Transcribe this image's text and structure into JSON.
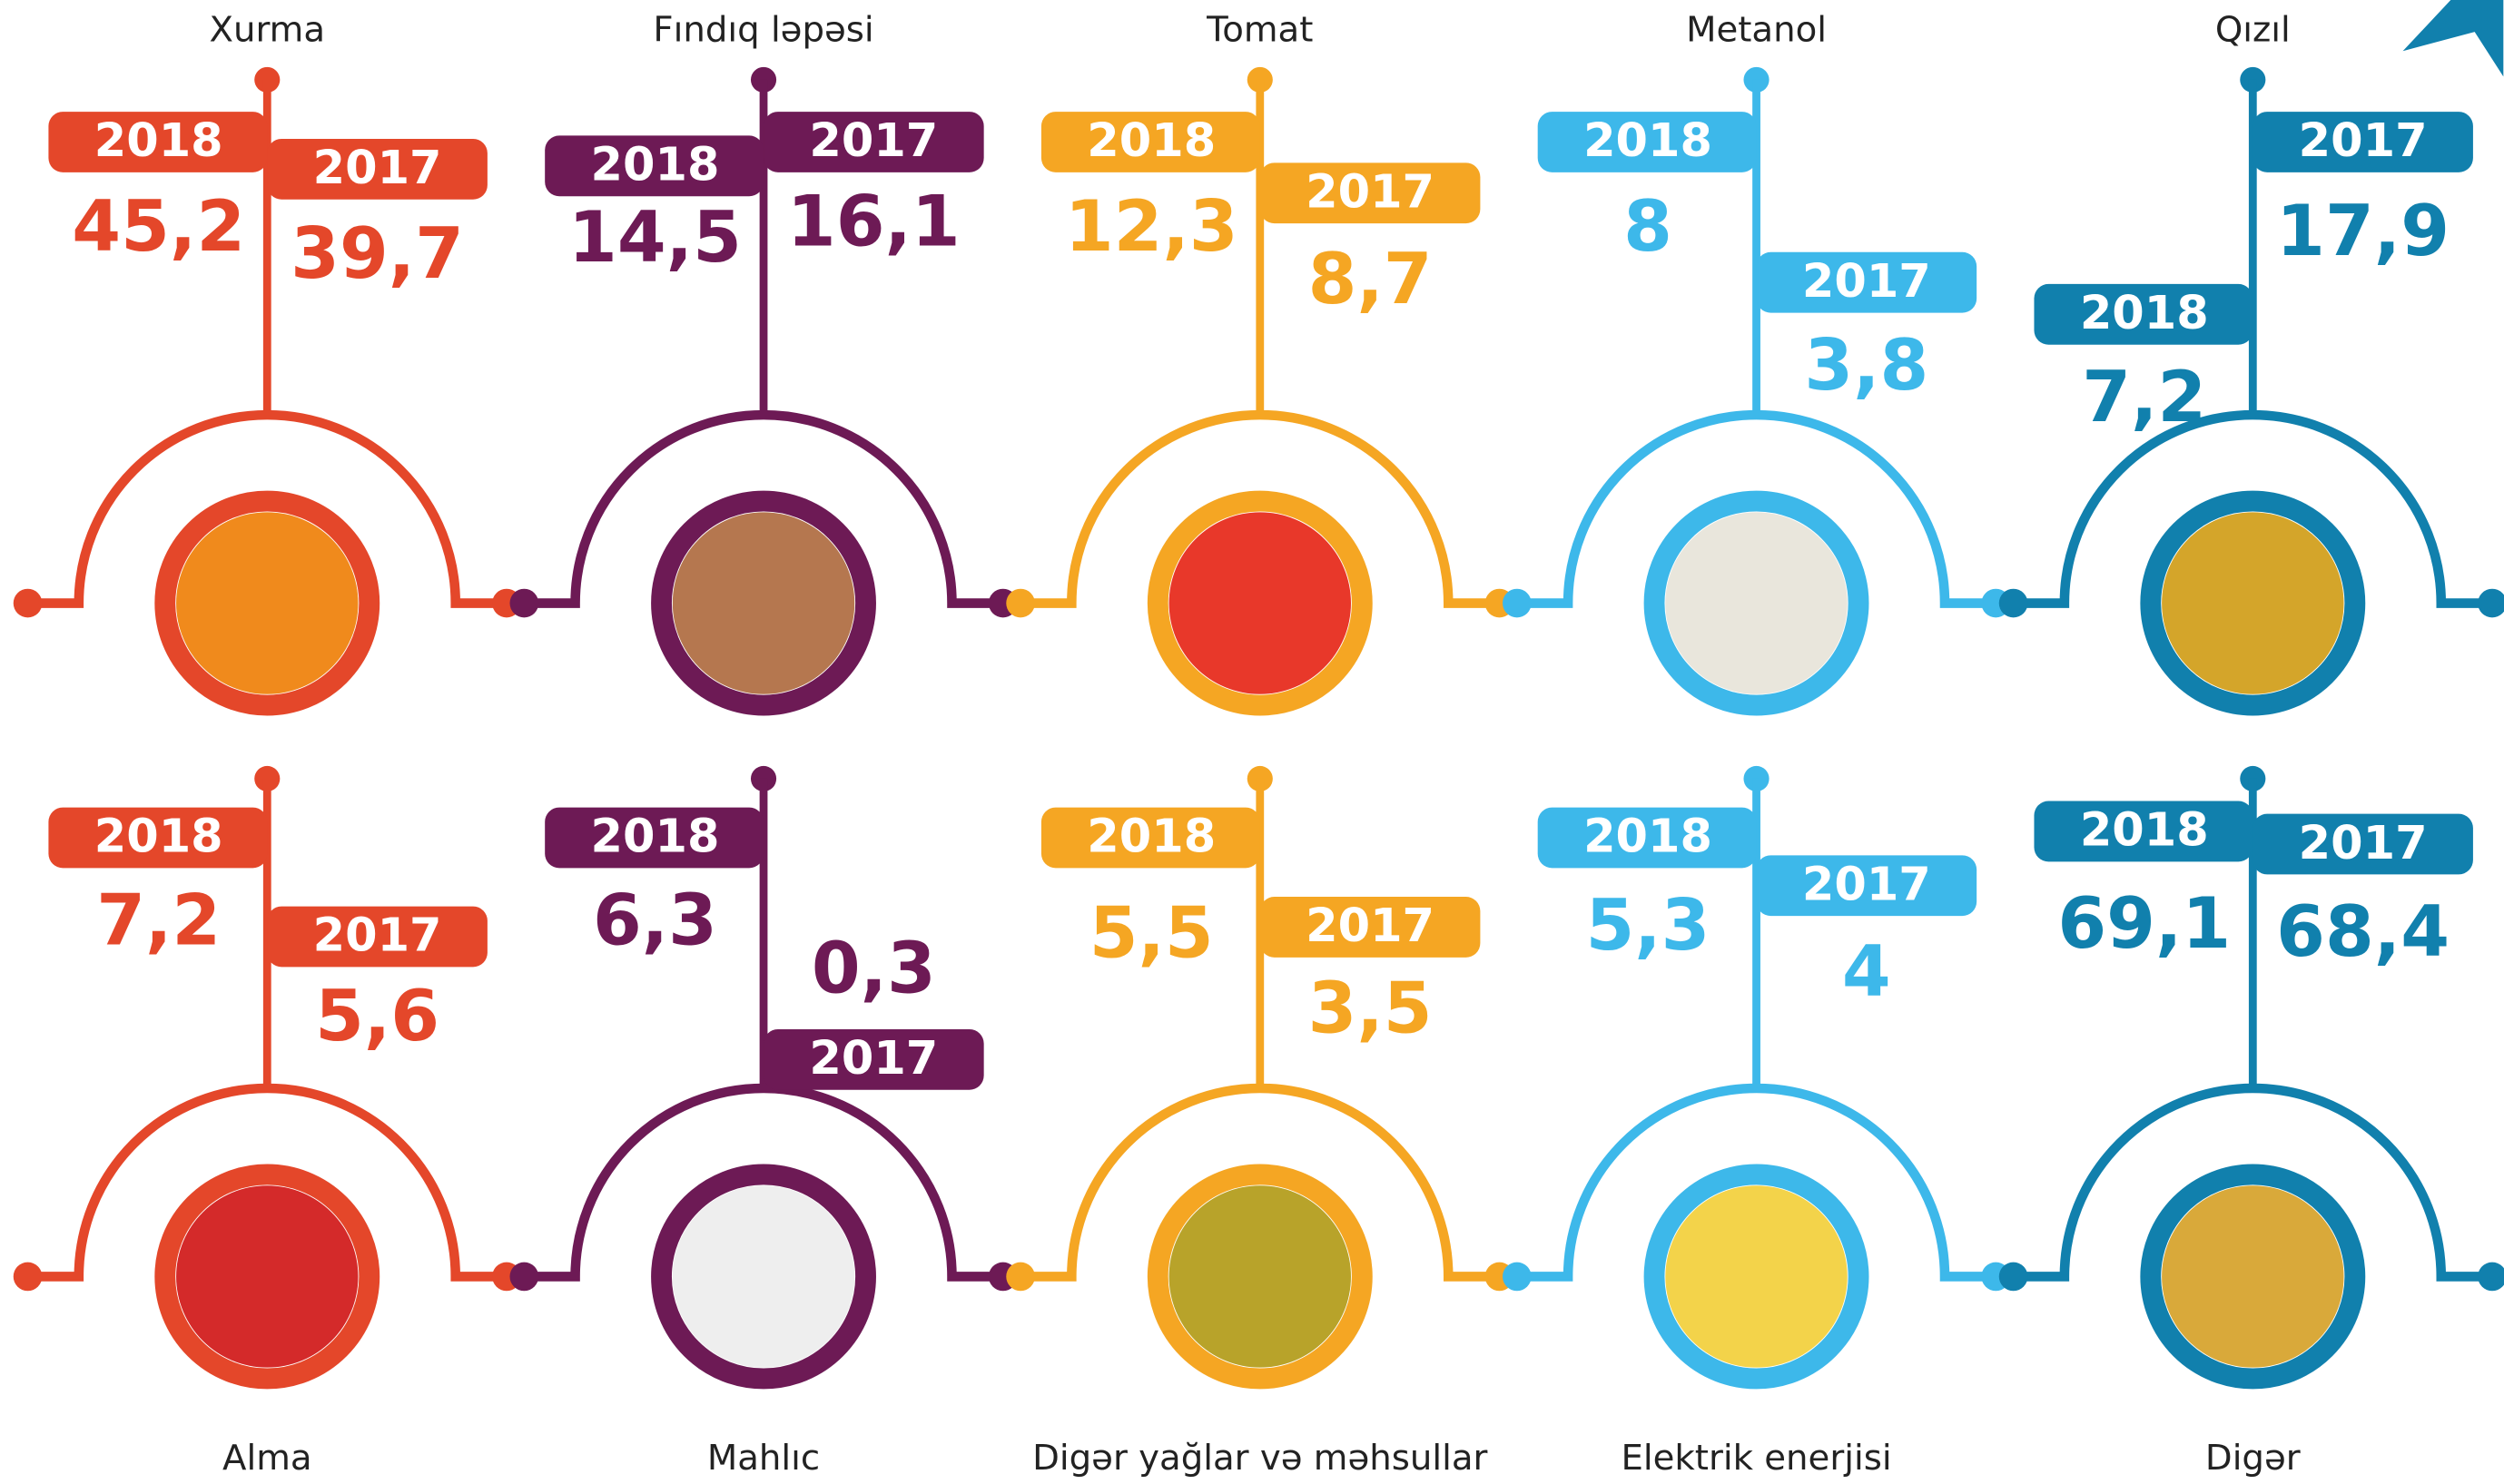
{
  "years": [
    "2018",
    "2017"
  ],
  "items": [
    {
      "name": "Xurma",
      "color": "#e4472a",
      "value_2018": "45,2",
      "value_2017": "39,7"
    },
    {
      "name": "Fındıq ləpəsi",
      "color": "#6d1a55",
      "value_2018": "14,5",
      "value_2017": "16,1"
    },
    {
      "name": "Tomat",
      "color": "#f5a623",
      "value_2018": "12,3",
      "value_2017": "8,7"
    },
    {
      "name": "Metanol",
      "color": "#3db8ea",
      "value_2018": "8",
      "value_2017": "3,8"
    },
    {
      "name": "Qızıl",
      "color": "#1180ad",
      "value_2018": "7,2",
      "value_2017": "17,9"
    },
    {
      "name": "Alma",
      "color": "#e4472a",
      "value_2018": "7,2",
      "value_2017": "5,6"
    },
    {
      "name": "Mahlıc",
      "color": "#6d1a55",
      "value_2018": "6,3",
      "value_2017": "0,3"
    },
    {
      "name": "Digər yağlar və məhsullar",
      "color": "#f5a623",
      "value_2018": "5,5",
      "value_2017": "3,5"
    },
    {
      "name": "Elektrik enerjisi",
      "color": "#3db8ea",
      "value_2018": "5,3",
      "value_2017": "4"
    },
    {
      "name": "Digər",
      "color": "#1180ad",
      "value_2018": "69,1",
      "value_2017": "68,4"
    }
  ]
}
